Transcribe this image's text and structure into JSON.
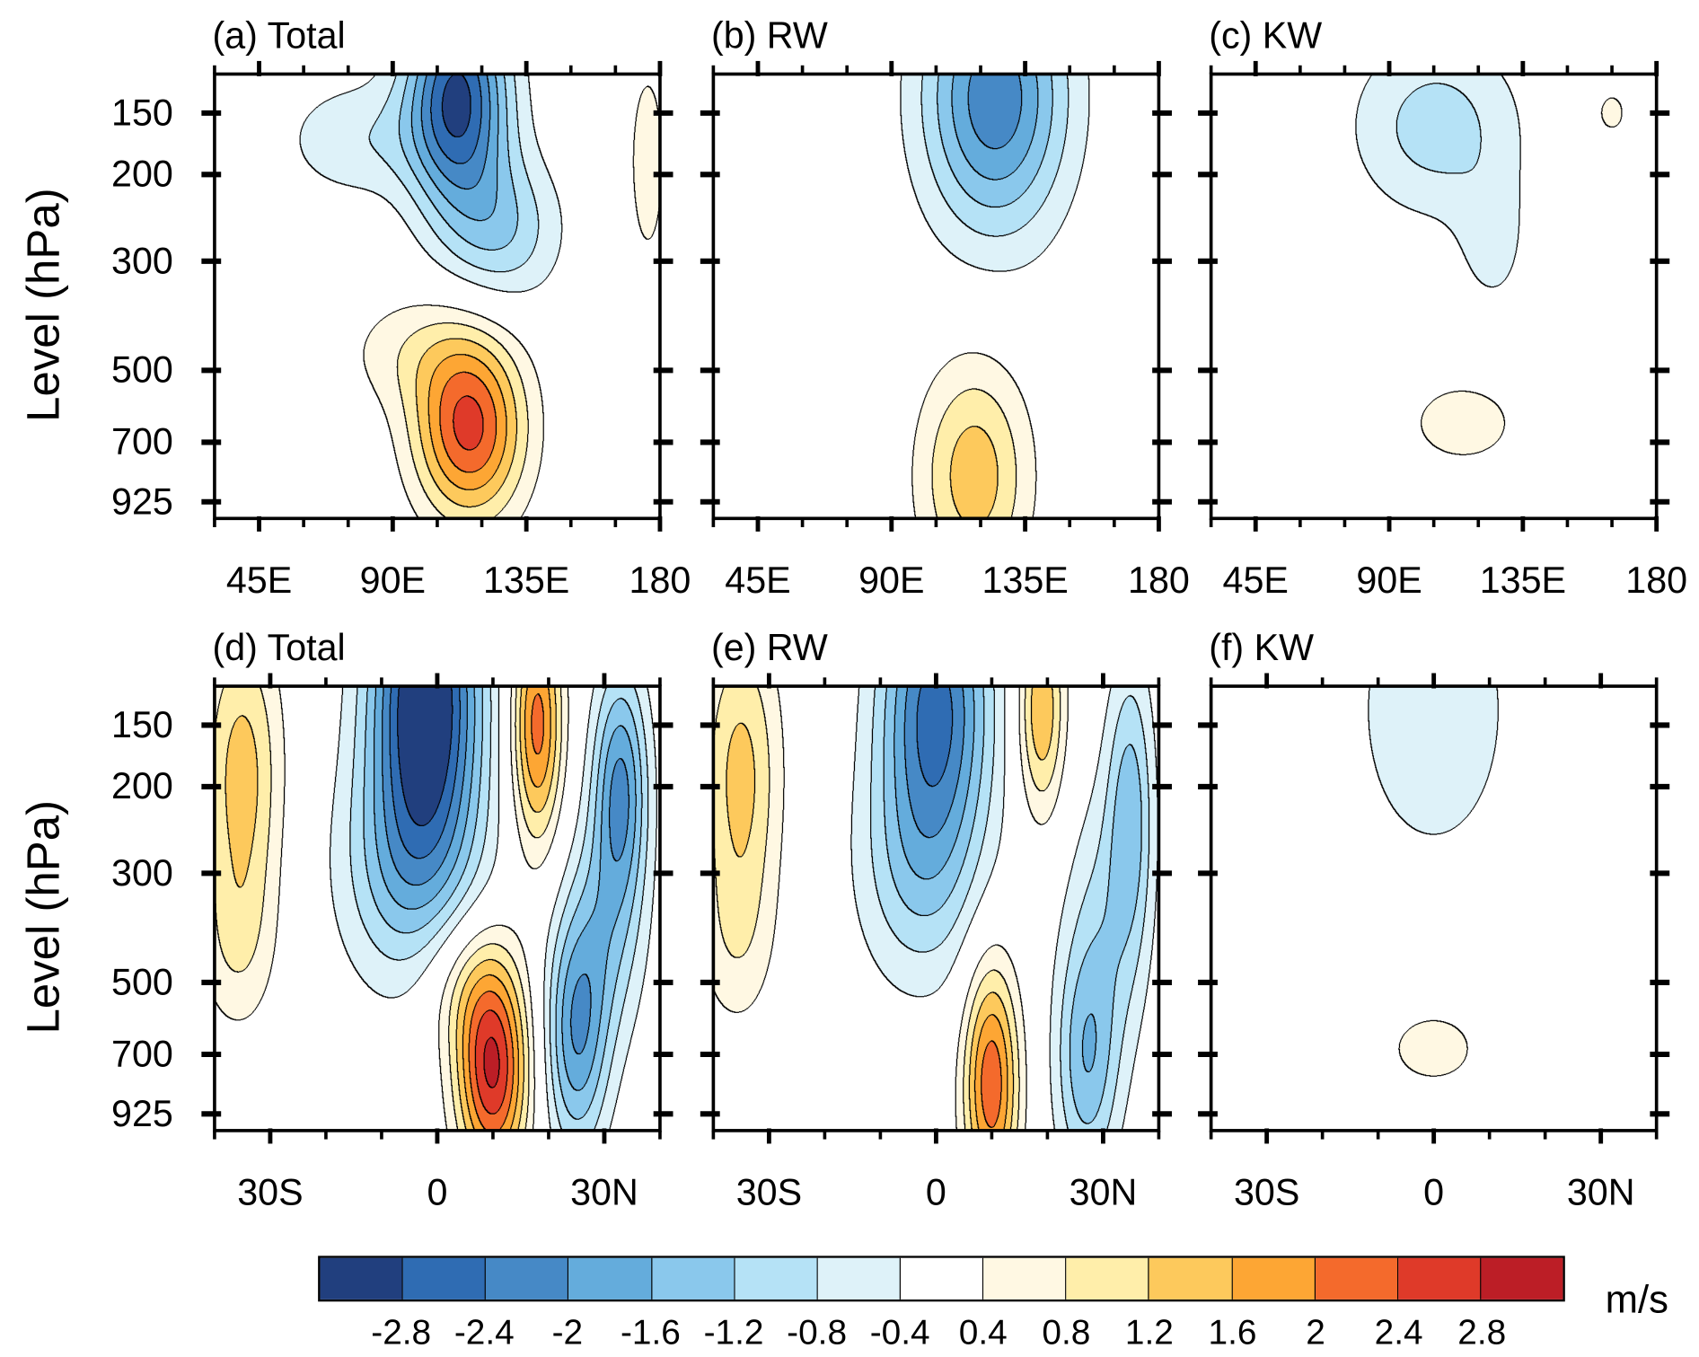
{
  "chart_data": [
    {
      "type": "contour",
      "title": "(a) Total",
      "ylabel": "Level (hPa)",
      "xlim": [
        30,
        180
      ],
      "ylim": [
        1000,
        125
      ],
      "y_scale": "log",
      "x_ticks": [
        {
          "value": 45,
          "label": "45E"
        },
        {
          "value": 90,
          "label": "90E"
        },
        {
          "value": 135,
          "label": "135E"
        },
        {
          "value": 180,
          "label": "180"
        }
      ],
      "x_minor_step": 15,
      "y_ticks": [
        {
          "value": 150,
          "label": "150"
        },
        {
          "value": 200,
          "label": "200"
        },
        {
          "value": 300,
          "label": "300"
        },
        {
          "value": 500,
          "label": "500"
        },
        {
          "value": 700,
          "label": "700"
        },
        {
          "value": 925,
          "label": "925"
        }
      ],
      "show_y_tick_labels": true,
      "field": [
        {
          "x": 112,
          "p": 140,
          "amp": -2.9,
          "sx": 12,
          "sy": 0.36
        },
        {
          "x": 127,
          "p": 260,
          "amp": -1.1,
          "sx": 14,
          "sy": 0.25
        },
        {
          "x": 78,
          "p": 170,
          "amp": -0.7,
          "sx": 18,
          "sy": 0.2
        },
        {
          "x": 116,
          "p": 660,
          "amp": 2.5,
          "sx": 13,
          "sy": 0.3
        },
        {
          "x": 98,
          "p": 460,
          "amp": 0.6,
          "sx": 18,
          "sy": 0.2
        },
        {
          "x": 176,
          "p": 190,
          "amp": 0.55,
          "sx": 6,
          "sy": 0.45
        }
      ]
    },
    {
      "type": "contour",
      "title": "(b) RW",
      "ylabel": "",
      "xlim": [
        30,
        180
      ],
      "ylim": [
        1000,
        125
      ],
      "y_scale": "log",
      "x_ticks": [
        {
          "value": 45,
          "label": "45E"
        },
        {
          "value": 90,
          "label": "90E"
        },
        {
          "value": 135,
          "label": "135E"
        },
        {
          "value": 180,
          "label": "180"
        }
      ],
      "x_minor_step": 15,
      "y_ticks": [
        {
          "value": 150,
          "label": "150"
        },
        {
          "value": 200,
          "label": "200"
        },
        {
          "value": 300,
          "label": "300"
        },
        {
          "value": 500,
          "label": "500"
        },
        {
          "value": 700,
          "label": "700"
        },
        {
          "value": 925,
          "label": "925"
        }
      ],
      "show_y_tick_labels": false,
      "field": [
        {
          "x": 125,
          "p": 140,
          "amp": -2.3,
          "sx": 17,
          "sy": 0.45
        },
        {
          "x": 118,
          "p": 820,
          "amp": 1.45,
          "sx": 13,
          "sy": 0.38
        }
      ]
    },
    {
      "type": "contour",
      "title": "(c) KW",
      "ylabel": "",
      "xlim": [
        30,
        180
      ],
      "ylim": [
        1000,
        125
      ],
      "y_scale": "log",
      "x_ticks": [
        {
          "value": 45,
          "label": "45E"
        },
        {
          "value": 90,
          "label": "90E"
        },
        {
          "value": 135,
          "label": "135E"
        },
        {
          "value": 180,
          "label": "180"
        }
      ],
      "x_minor_step": 15,
      "y_ticks": [
        {
          "value": 150,
          "label": "150"
        },
        {
          "value": 200,
          "label": "200"
        },
        {
          "value": 300,
          "label": "300"
        },
        {
          "value": 500,
          "label": "500"
        },
        {
          "value": 700,
          "label": "700"
        },
        {
          "value": 925,
          "label": "925"
        }
      ],
      "show_y_tick_labels": false,
      "field": [
        {
          "x": 106,
          "p": 160,
          "amp": -1.0,
          "sx": 20,
          "sy": 0.3
        },
        {
          "x": 125,
          "p": 280,
          "amp": -0.5,
          "sx": 9,
          "sy": 0.25
        },
        {
          "x": 115,
          "p": 640,
          "amp": 0.62,
          "sx": 15,
          "sy": 0.16
        },
        {
          "x": 165,
          "p": 150,
          "amp": 0.52,
          "sx": 5,
          "sy": 0.1
        }
      ]
    },
    {
      "type": "contour",
      "title": "(d) Total",
      "ylabel": "Level (hPa)",
      "xlim": [
        -40,
        40
      ],
      "ylim": [
        1000,
        125
      ],
      "y_scale": "log",
      "x_ticks": [
        {
          "value": -30,
          "label": "30S"
        },
        {
          "value": 0,
          "label": "0"
        },
        {
          "value": 30,
          "label": "30N"
        }
      ],
      "x_minor_step": 10,
      "y_ticks": [
        {
          "value": 150,
          "label": "150"
        },
        {
          "value": 200,
          "label": "200"
        },
        {
          "value": 300,
          "label": "300"
        },
        {
          "value": 500,
          "label": "500"
        },
        {
          "value": 700,
          "label": "700"
        },
        {
          "value": 925,
          "label": "925"
        }
      ],
      "show_y_tick_labels": true,
      "field": [
        {
          "x": -35,
          "p": 190,
          "amp": 1.4,
          "sx": 5,
          "sy": 0.5
        },
        {
          "x": -36,
          "p": 420,
          "amp": 0.6,
          "sx": 5,
          "sy": 0.3
        },
        {
          "x": -2,
          "p": 130,
          "amp": -3.4,
          "sx": 7,
          "sy": 0.55
        },
        {
          "x": -5,
          "p": 300,
          "amp": -1.2,
          "sx": 9,
          "sy": 0.4
        },
        {
          "x": 18,
          "p": 150,
          "amp": 2.2,
          "sx": 3.2,
          "sy": 0.4
        },
        {
          "x": 10,
          "p": 760,
          "amp": 2.8,
          "sx": 4.5,
          "sy": 0.35
        },
        {
          "x": 5,
          "p": 500,
          "amp": 0.8,
          "sx": 6,
          "sy": 0.25
        },
        {
          "x": 33,
          "p": 200,
          "amp": -2.0,
          "sx": 3.5,
          "sy": 0.4
        },
        {
          "x": 25,
          "p": 650,
          "amp": -1.8,
          "sx": 4,
          "sy": 0.4
        },
        {
          "x": 30,
          "p": 400,
          "amp": -1.0,
          "sx": 5,
          "sy": 0.4
        }
      ]
    },
    {
      "type": "contour",
      "title": "(e) RW",
      "ylabel": "",
      "xlim": [
        -40,
        40
      ],
      "ylim": [
        1000,
        125
      ],
      "y_scale": "log",
      "x_ticks": [
        {
          "value": -30,
          "label": "30S"
        },
        {
          "value": 0,
          "label": "0"
        },
        {
          "value": 30,
          "label": "30N"
        }
      ],
      "x_minor_step": 10,
      "y_ticks": [
        {
          "value": 150,
          "label": "150"
        },
        {
          "value": 200,
          "label": "200"
        },
        {
          "value": 300,
          "label": "300"
        },
        {
          "value": 500,
          "label": "500"
        },
        {
          "value": 700,
          "label": "700"
        },
        {
          "value": 925,
          "label": "925"
        }
      ],
      "show_y_tick_labels": false,
      "field": [
        {
          "x": -35,
          "p": 190,
          "amp": 1.35,
          "sx": 5,
          "sy": 0.5
        },
        {
          "x": -36,
          "p": 420,
          "amp": 0.5,
          "sx": 5,
          "sy": 0.3
        },
        {
          "x": 0,
          "p": 135,
          "amp": -2.5,
          "sx": 7,
          "sy": 0.5
        },
        {
          "x": -3,
          "p": 300,
          "amp": -1.0,
          "sx": 8,
          "sy": 0.4
        },
        {
          "x": 19,
          "p": 140,
          "amp": 1.6,
          "sx": 3,
          "sy": 0.35
        },
        {
          "x": 10,
          "p": 800,
          "amp": 2.3,
          "sx": 3.5,
          "sy": 0.4
        },
        {
          "x": 35,
          "p": 220,
          "amp": -1.3,
          "sx": 3,
          "sy": 0.5
        },
        {
          "x": 27,
          "p": 750,
          "amp": -1.3,
          "sx": 4,
          "sy": 0.4
        },
        {
          "x": 30,
          "p": 400,
          "amp": -0.8,
          "sx": 5,
          "sy": 0.5
        }
      ]
    },
    {
      "type": "contour",
      "title": "(f) KW",
      "ylabel": "",
      "xlim": [
        -40,
        40
      ],
      "ylim": [
        1000,
        125
      ],
      "y_scale": "log",
      "x_ticks": [
        {
          "value": -30,
          "label": "30S"
        },
        {
          "value": 0,
          "label": "0"
        },
        {
          "value": 30,
          "label": "30N"
        }
      ],
      "x_minor_step": 10,
      "y_ticks": [
        {
          "value": 150,
          "label": "150"
        },
        {
          "value": 200,
          "label": "200"
        },
        {
          "value": 300,
          "label": "300"
        },
        {
          "value": 500,
          "label": "500"
        },
        {
          "value": 700,
          "label": "700"
        },
        {
          "value": 925,
          "label": "925"
        }
      ],
      "show_y_tick_labels": false,
      "field": [
        {
          "x": 0,
          "p": 140,
          "amp": -0.7,
          "sx": 11,
          "sy": 0.55
        },
        {
          "x": 0,
          "p": 680,
          "amp": 0.6,
          "sx": 7,
          "sy": 0.15
        }
      ]
    }
  ],
  "colorbar": {
    "levels": [
      -2.8,
      -2.4,
      -2,
      -1.6,
      -1.2,
      -0.8,
      -0.4,
      0.4,
      0.8,
      1.2,
      1.6,
      2,
      2.4,
      2.8
    ],
    "labels": [
      "-2.8",
      "-2.4",
      "-2",
      "-1.6",
      "-1.2",
      "-0.8",
      "-0.4",
      "0.4",
      "0.8",
      "1.2",
      "1.6",
      "2",
      "2.4",
      "2.8"
    ],
    "colors": [
      "#213f7e",
      "#2f6cb3",
      "#4689c6",
      "#64acdc",
      "#8ac8ec",
      "#b5e2f6",
      "#def2f9",
      "#ffffff",
      "#fff8e3",
      "#ffeeaa",
      "#fdc95c",
      "#fda634",
      "#f46a2c",
      "#df3a29",
      "#bc1e26"
    ],
    "units": "m/s"
  }
}
